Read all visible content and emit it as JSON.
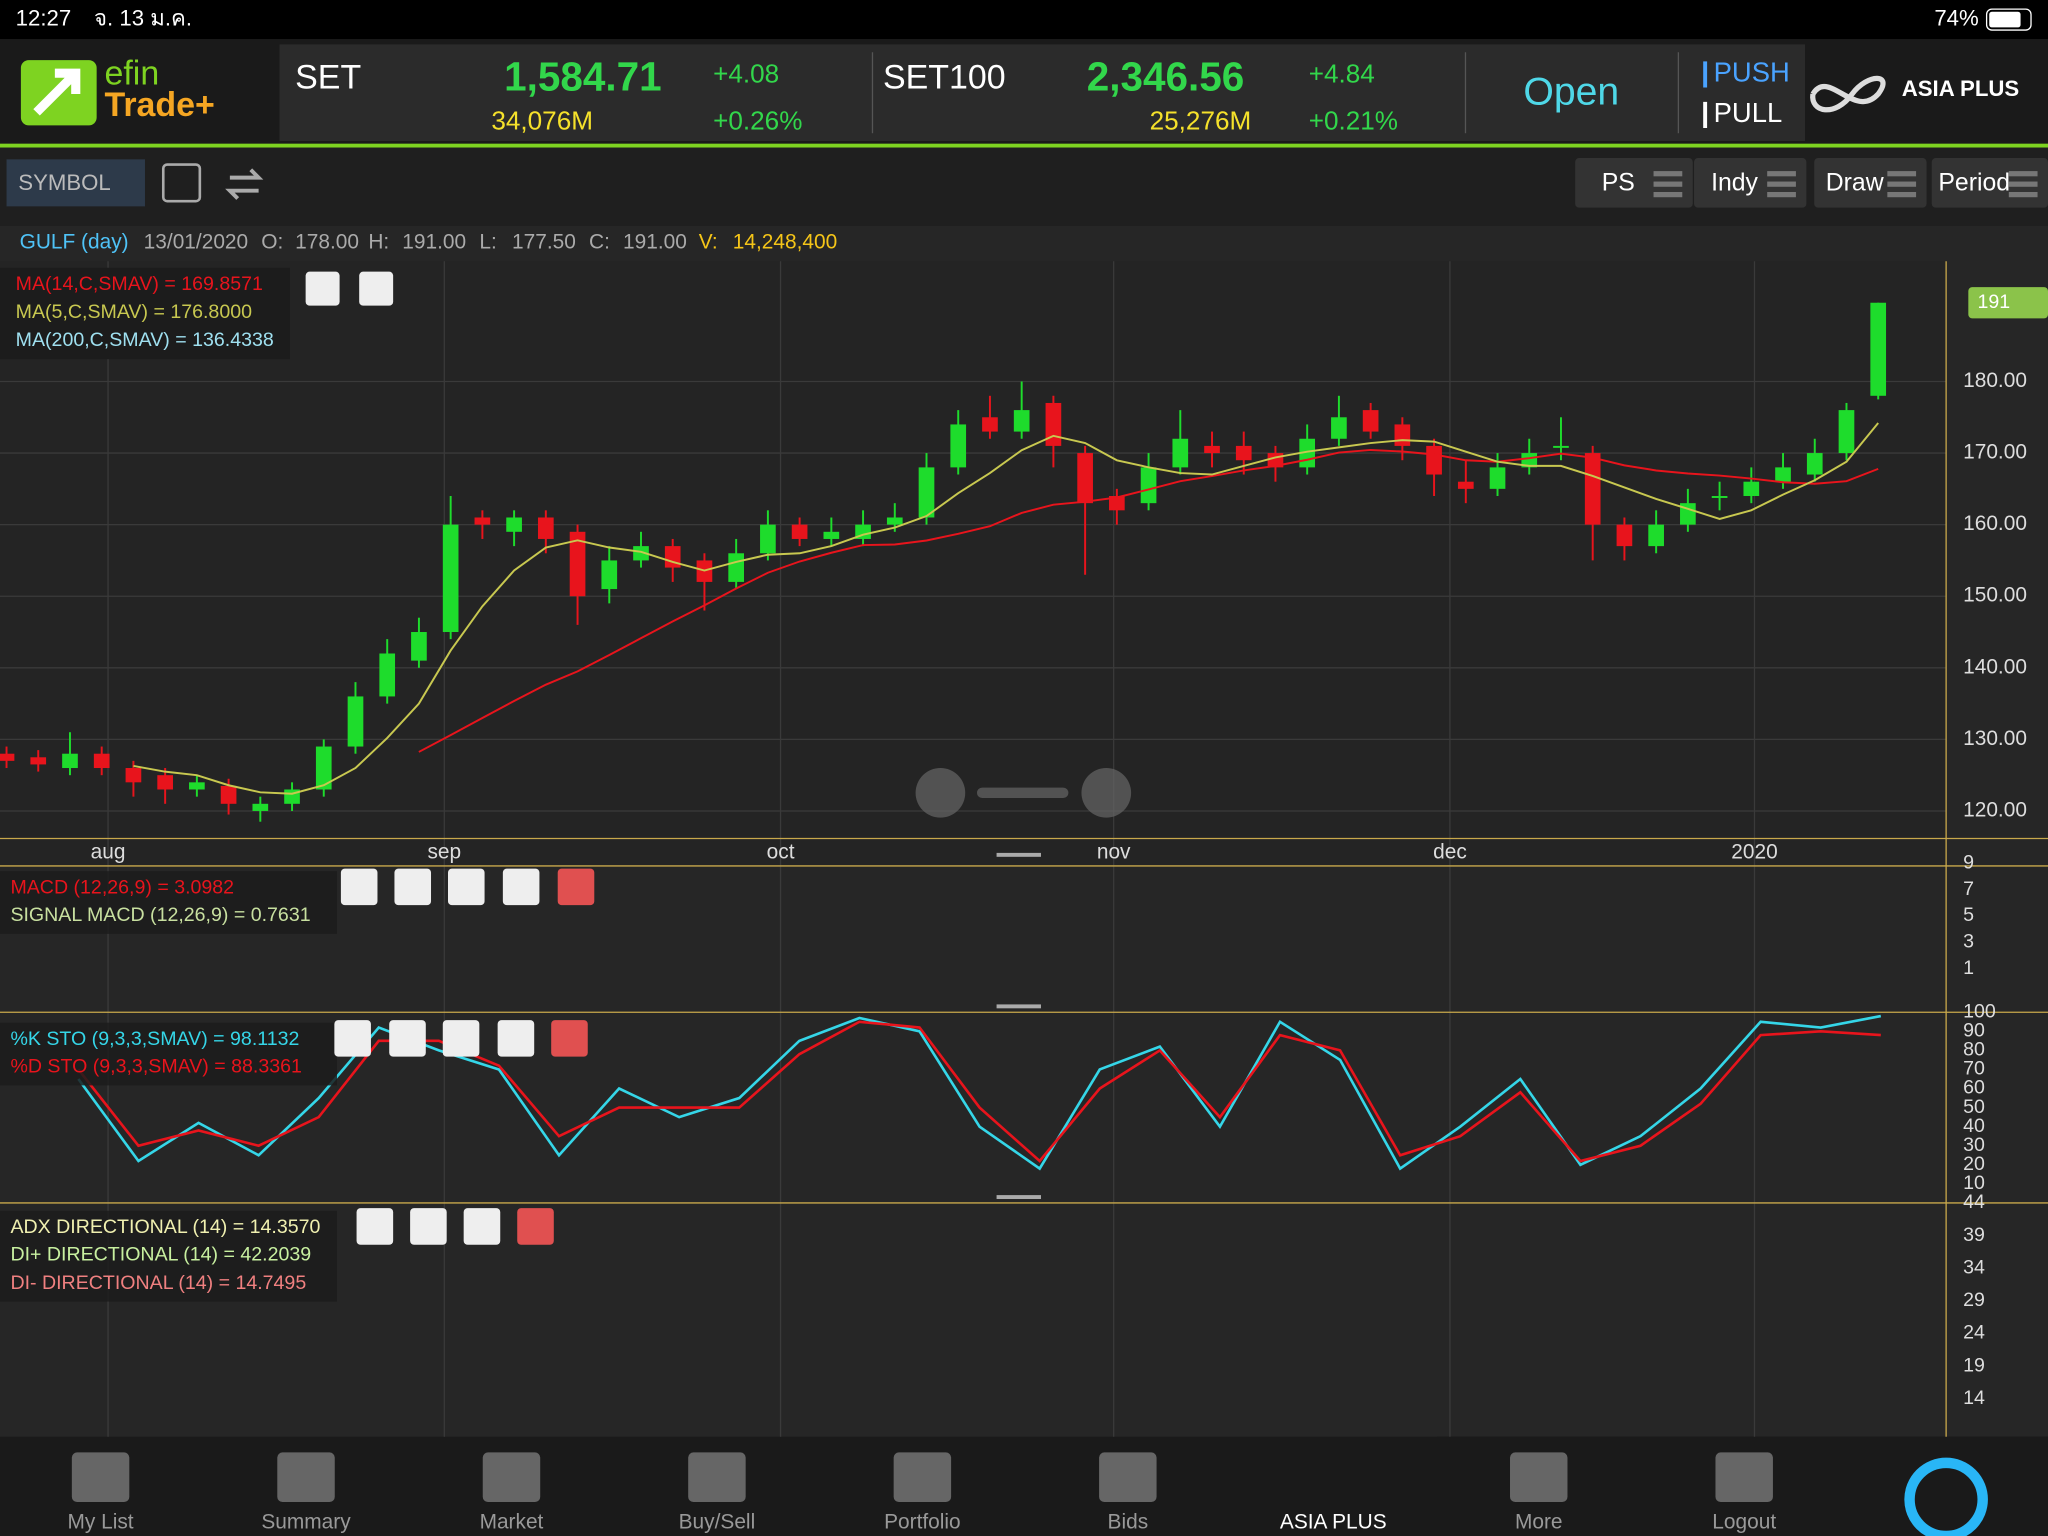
{
  "status_bar": {
    "time": "12:27",
    "date": "จ. 13 ม.ค.",
    "battery": "74%"
  },
  "header": {
    "logo_top": "efin",
    "logo_bottom": "Trade+",
    "indices": [
      {
        "name": "SET",
        "value": "1,584.71",
        "change": "+4.08",
        "volume": "34,076M",
        "percent": "+0.26%"
      },
      {
        "name": "SET100",
        "value": "2,346.56",
        "change": "+4.84",
        "volume": "25,276M",
        "percent": "+0.21%"
      }
    ],
    "market_status": "Open",
    "push": "PUSH",
    "pull": "PULL",
    "broker": "ASIA PLUS"
  },
  "toolbar": {
    "symbol_placeholder": "SYMBOL",
    "buttons": [
      "PS",
      "Indy",
      "Draw",
      "Period"
    ]
  },
  "chart_info": {
    "symbol": "GULF (day)",
    "date": "13/01/2020",
    "open_label": "O:",
    "open": "178.00",
    "high_label": "H:",
    "high": "191.00",
    "low_label": "L:",
    "low": "177.50",
    "close_label": "C:",
    "close": "191.00",
    "volume_label": "V:",
    "volume": "14,248,400"
  },
  "chart_data": {
    "type": "candlestick",
    "legend": [
      "MA(14,C,SMAV) = 169.8571",
      "MA(5,C,SMAV) = 176.8000",
      "MA(200,C,SMAV) = 136.4338"
    ],
    "last_price_label": 191,
    "open": [
      128,
      127.5,
      126,
      128,
      126,
      125,
      123,
      123.5,
      120,
      121,
      123,
      129,
      136,
      141,
      145,
      161,
      159,
      161,
      159,
      151,
      155,
      157,
      155,
      152,
      156,
      160,
      158,
      158,
      160,
      161,
      168,
      175,
      173,
      177,
      170,
      164,
      163,
      168,
      171,
      171,
      170,
      168,
      172,
      176,
      174,
      171,
      166,
      165,
      168,
      171,
      170,
      160,
      157,
      160,
      164,
      164,
      166,
      167,
      170,
      178
    ],
    "high": [
      129,
      128.5,
      131,
      129,
      127,
      126,
      125,
      124.5,
      122,
      124,
      130,
      138,
      144,
      147,
      164,
      162,
      162,
      162,
      160,
      157,
      159,
      158,
      156,
      158,
      162,
      161,
      161,
      162,
      163,
      170,
      176,
      178,
      180,
      178,
      171,
      165,
      170,
      176,
      173,
      173,
      171,
      174,
      178,
      177,
      175,
      172,
      169,
      170,
      172,
      175,
      171,
      161,
      162,
      165,
      166,
      168,
      170,
      172,
      177,
      191
    ],
    "low": [
      126,
      125.5,
      125,
      125,
      122,
      121,
      122,
      119.5,
      118.5,
      120,
      122,
      128,
      135,
      140,
      144,
      158,
      157,
      156,
      146,
      149,
      154,
      152,
      148,
      151,
      155,
      157,
      157,
      157,
      159,
      160,
      167,
      172,
      172,
      168,
      153,
      160,
      162,
      167,
      168,
      167,
      166,
      167,
      171,
      172,
      169,
      164,
      163,
      164,
      167,
      169,
      155,
      155,
      156,
      159,
      162,
      163,
      165,
      166,
      169,
      177.5
    ],
    "close": [
      127,
      126.5,
      128,
      126,
      124,
      123,
      124,
      121,
      121,
      123,
      129,
      136,
      142,
      145,
      160,
      160,
      161,
      158,
      150,
      155,
      157,
      154,
      152,
      156,
      160,
      158,
      159,
      160,
      161,
      168,
      174,
      173,
      176,
      171,
      163,
      162,
      168,
      172,
      170,
      169,
      168,
      172,
      175,
      173,
      171,
      167,
      165,
      168,
      170,
      171,
      160,
      157,
      160,
      163,
      164,
      166,
      168,
      170,
      176,
      191
    ],
    "xticks": [
      {
        "value": 3.2,
        "label": "aug"
      },
      {
        "value": 13.8,
        "label": "sep"
      },
      {
        "value": 24.4,
        "label": "oct"
      },
      {
        "value": 34.9,
        "label": "nov"
      },
      {
        "value": 45.5,
        "label": "dec"
      },
      {
        "value": 55.1,
        "label": "2020"
      }
    ],
    "ylim": [
      112.5,
      196.8
    ],
    "yticks": [
      {
        "value": 120,
        "label": "120.00"
      },
      {
        "value": 130,
        "label": "130.00"
      },
      {
        "value": 140,
        "label": "140.00"
      },
      {
        "value": 150,
        "label": "150.00"
      },
      {
        "value": 160,
        "label": "160.00"
      },
      {
        "value": 170,
        "label": "170.00"
      },
      {
        "value": 180,
        "label": "180.00"
      }
    ],
    "grid": true
  },
  "macd": {
    "legend": [
      "MACD (12,26,9) = 3.0982",
      "SIGNAL MACD (12,26,9) = 0.7631"
    ],
    "ylim": [
      -2.5,
      9.2
    ],
    "yticks": [
      9,
      7,
      5,
      3,
      1
    ]
  },
  "stochastic": {
    "legend": [
      "%K STO (9,3,3,SMAV) = 98.1132",
      "%D STO (9,3,3,SMAV) = 88.3361"
    ],
    "ylim": [
      0,
      100
    ],
    "yticks": [
      100,
      90,
      80,
      70,
      60,
      50,
      40,
      30,
      20,
      10
    ],
    "series": [
      {
        "color": "#35d6e8",
        "values": [
          65,
          22,
          42,
          25,
          55,
          92,
          80,
          70,
          25,
          60,
          45,
          55,
          85,
          97,
          90,
          40,
          18,
          70,
          82,
          40,
          95,
          75,
          18,
          40,
          65,
          20,
          35,
          60,
          95,
          92,
          98
        ]
      },
      {
        "color": "#e8141c",
        "values": [
          70,
          30,
          38,
          30,
          45,
          85,
          85,
          72,
          35,
          50,
          50,
          50,
          78,
          95,
          92,
          50,
          22,
          60,
          80,
          45,
          88,
          80,
          25,
          35,
          58,
          22,
          30,
          52,
          88,
          90,
          88
        ]
      }
    ]
  },
  "adx": {
    "legend": [
      "ADX DIRECTIONAL (14) = 14.3570",
      "DI+ DIRECTIONAL (14) = 42.2039",
      "DI- DIRECTIONAL (14) = 14.7495"
    ],
    "ylim": [
      8.2,
      44
    ],
    "yticks": [
      44,
      39,
      34,
      29,
      24,
      19,
      14
    ]
  },
  "nav": [
    "My List",
    "Summary",
    "Market",
    "Buy/Sell",
    "Portfolio",
    "Bids",
    "ASIA PLUS",
    "More",
    "Logout"
  ]
}
